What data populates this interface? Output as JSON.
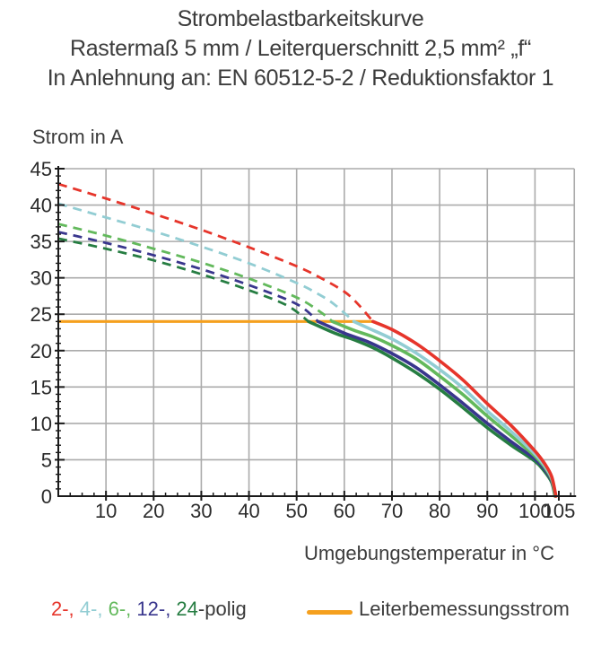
{
  "title": {
    "line1": "Strombelastbarkeitskurve",
    "line2": "Rastermaß 5 mm / Leiterquerschnitt 2,5 mm² „f“",
    "line3": "In Anlehnung an: EN 60512-5-2 / Reduktionsfaktor 1"
  },
  "axes": {
    "y_title": "Strom in A",
    "x_title": "Umgebungstemperatur in °C"
  },
  "legend": {
    "pole_segments": [
      {
        "text": "2-, ",
        "color": "#e6352b"
      },
      {
        "text": "4-, ",
        "color": "#92cdd3"
      },
      {
        "text": "6-, ",
        "color": "#63b95c"
      },
      {
        "text": "12-, ",
        "color": "#39368d"
      },
      {
        "text": "24",
        "color": "#267d42"
      },
      {
        "text": "-polig",
        "color": "#3a3a3a"
      }
    ],
    "rated_line_label": "Leiterbemessungsstrom",
    "rated_line_color": "#f5a01e"
  },
  "chart_data": {
    "type": "line",
    "title": "Strombelastbarkeitskurve",
    "xlabel": "Umgebungstemperatur in °C",
    "ylabel": "Strom in A",
    "xlim": [
      0,
      108.25
    ],
    "ylim": [
      0,
      45
    ],
    "x_major_ticks": [
      10,
      20,
      30,
      40,
      50,
      60,
      70,
      80,
      90,
      100,
      105
    ],
    "x_minor_step": 2.5,
    "y_major_ticks": [
      0,
      5,
      10,
      15,
      20,
      25,
      30,
      35,
      40,
      45
    ],
    "y_minor_step": 1,
    "x_gridlines": [
      10,
      20,
      30,
      40,
      50,
      60,
      70,
      80,
      90,
      100
    ],
    "y_gridlines": [
      5,
      10,
      15,
      20,
      25,
      30,
      35,
      40,
      45
    ],
    "grid": true,
    "grid_color": "#ababab",
    "axis_color": "#1a1a1a",
    "rated_line": {
      "label": "Leiterbemessungsstrom",
      "value": 24,
      "x_range": [
        0,
        66
      ],
      "color": "#f5a01e"
    },
    "series": [
      {
        "name": "24-polig",
        "color": "#267d42",
        "crossing_temp": 52.5,
        "dashed_points": [
          [
            0,
            35.4
          ],
          [
            10,
            34.0
          ],
          [
            20,
            32.4
          ],
          [
            30,
            30.5
          ],
          [
            40,
            28.3
          ],
          [
            48,
            26.2
          ],
          [
            52.5,
            24.0
          ]
        ],
        "solid_points": [
          [
            52.5,
            24.0
          ],
          [
            58,
            22.4
          ],
          [
            62,
            21.5
          ],
          [
            66,
            20.4
          ],
          [
            70,
            19.0
          ],
          [
            75,
            17.0
          ],
          [
            80,
            14.7
          ],
          [
            85,
            12.1
          ],
          [
            90,
            9.4
          ],
          [
            95,
            7.0
          ],
          [
            100,
            4.8
          ],
          [
            102,
            3.4
          ],
          [
            103.5,
            1.9
          ],
          [
            104.2,
            0
          ]
        ]
      },
      {
        "name": "12-polig",
        "color": "#39368d",
        "crossing_temp": 54.5,
        "dashed_points": [
          [
            0,
            36.3
          ],
          [
            10,
            34.8
          ],
          [
            20,
            33.1
          ],
          [
            30,
            31.2
          ],
          [
            40,
            29.0
          ],
          [
            50,
            26.4
          ],
          [
            54.5,
            24.0
          ]
        ],
        "solid_points": [
          [
            54.5,
            24.0
          ],
          [
            60,
            22.4
          ],
          [
            65,
            21.2
          ],
          [
            70,
            19.6
          ],
          [
            75,
            17.7
          ],
          [
            80,
            15.3
          ],
          [
            85,
            12.7
          ],
          [
            90,
            10.0
          ],
          [
            95,
            7.5
          ],
          [
            100,
            5.1
          ],
          [
            102,
            3.7
          ],
          [
            103.5,
            2.1
          ],
          [
            104.3,
            0
          ]
        ]
      },
      {
        "name": "6-polig",
        "color": "#63b95c",
        "crossing_temp": 57.5,
        "dashed_points": [
          [
            0,
            37.4
          ],
          [
            10,
            35.8
          ],
          [
            20,
            34.0
          ],
          [
            30,
            32.1
          ],
          [
            40,
            29.9
          ],
          [
            50,
            27.3
          ],
          [
            55,
            25.3
          ],
          [
            57.5,
            24.0
          ]
        ],
        "solid_points": [
          [
            57.5,
            24.0
          ],
          [
            62,
            22.8
          ],
          [
            66,
            21.9
          ],
          [
            70,
            20.7
          ],
          [
            75,
            18.9
          ],
          [
            80,
            16.5
          ],
          [
            85,
            13.9
          ],
          [
            90,
            11.0
          ],
          [
            95,
            8.3
          ],
          [
            100,
            5.5
          ],
          [
            102,
            4.0
          ],
          [
            103.5,
            2.3
          ],
          [
            104.3,
            0
          ]
        ]
      },
      {
        "name": "4-polig",
        "color": "#92cdd3",
        "crossing_temp": 62,
        "dashed_points": [
          [
            0,
            40.2
          ],
          [
            10,
            38.3
          ],
          [
            20,
            36.4
          ],
          [
            30,
            34.3
          ],
          [
            40,
            32.0
          ],
          [
            50,
            29.3
          ],
          [
            55,
            27.6
          ],
          [
            58,
            26.3
          ],
          [
            62,
            24.0
          ]
        ],
        "solid_points": [
          [
            62,
            24.0
          ],
          [
            65,
            23.1
          ],
          [
            70,
            21.6
          ],
          [
            75,
            19.7
          ],
          [
            80,
            17.4
          ],
          [
            85,
            14.8
          ],
          [
            90,
            11.7
          ],
          [
            95,
            8.9
          ],
          [
            100,
            5.8
          ],
          [
            102,
            4.2
          ],
          [
            103.5,
            2.5
          ],
          [
            104.4,
            0
          ]
        ]
      },
      {
        "name": "2-polig",
        "color": "#e6352b",
        "crossing_temp": 66,
        "dashed_points": [
          [
            0,
            42.9
          ],
          [
            10,
            40.9
          ],
          [
            20,
            38.8
          ],
          [
            30,
            36.6
          ],
          [
            40,
            34.2
          ],
          [
            50,
            31.6
          ],
          [
            55,
            30.0
          ],
          [
            60,
            28.1
          ],
          [
            63,
            26.3
          ],
          [
            66,
            24.0
          ]
        ],
        "solid_points": [
          [
            66,
            24.0
          ],
          [
            70,
            22.9
          ],
          [
            75,
            21.0
          ],
          [
            80,
            18.6
          ],
          [
            85,
            15.9
          ],
          [
            90,
            12.7
          ],
          [
            95,
            9.7
          ],
          [
            100,
            6.2
          ],
          [
            102,
            4.5
          ],
          [
            103.5,
            2.7
          ],
          [
            104.4,
            0
          ]
        ]
      }
    ]
  }
}
